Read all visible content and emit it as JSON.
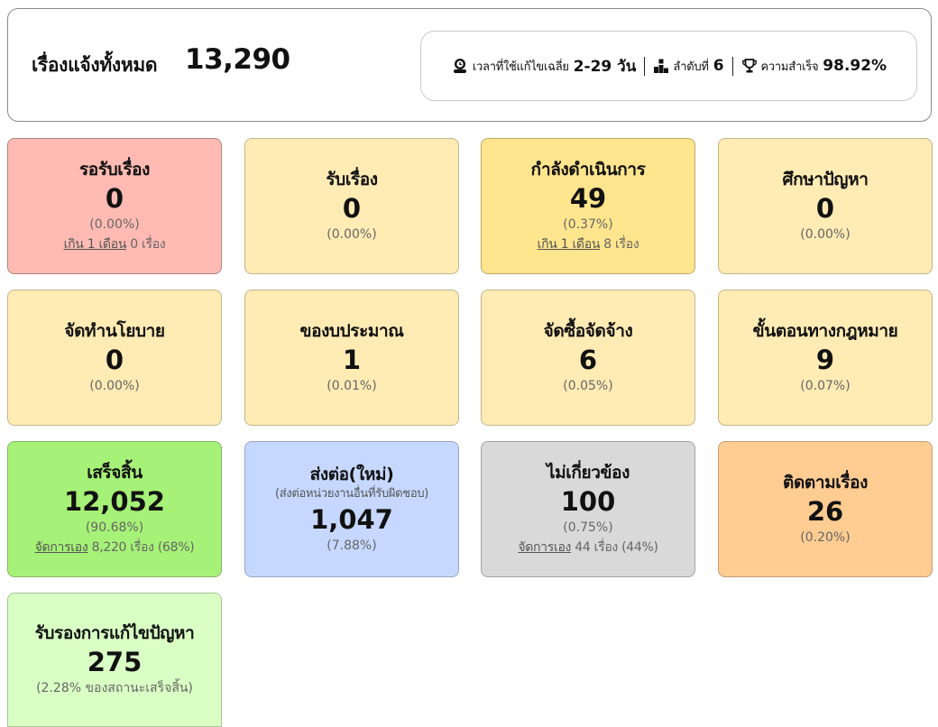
{
  "summary": {
    "label": "เรื่องแจ้งทั้งหมด",
    "total": "13,290",
    "stats": [
      {
        "icon": "stopwatch-user-icon",
        "label": "เวลาที่ใช้แก้ไขเฉลี่ย",
        "value": "2-29 วัน"
      },
      {
        "icon": "ranking-podium-icon",
        "label": "ลำดับที่",
        "value": "6"
      },
      {
        "icon": "trophy-icon",
        "label": "ความสำเร็จ",
        "value": "98.92%"
      }
    ]
  },
  "cards": [
    {
      "title": "รอรับเรื่อง",
      "count": "0",
      "percent": "(0.00%)",
      "note_link": "เกิน 1 เดือน",
      "note_text": " 0 เรื่อง",
      "color": "#ffbbb3"
    },
    {
      "title": "รับเรื่อง",
      "count": "0",
      "percent": "(0.00%)",
      "color": "#ffebb4"
    },
    {
      "title": "กำลังดำเนินการ",
      "count": "49",
      "percent": "(0.37%)",
      "note_link": "เกิน 1 เดือน",
      "note_text": " 8 เรื่อง",
      "color": "#ffe58d"
    },
    {
      "title": "ศึกษาปัญหา",
      "count": "0",
      "percent": "(0.00%)",
      "color": "#ffebb4"
    },
    {
      "title": "จัดทำนโยบาย",
      "count": "0",
      "percent": "(0.00%)",
      "color": "#ffebb4"
    },
    {
      "title": "ของบประมาณ",
      "count": "1",
      "percent": "(0.01%)",
      "color": "#ffebb4"
    },
    {
      "title": "จัดซื้อจัดจ้าง",
      "count": "6",
      "percent": "(0.05%)",
      "color": "#ffebb4"
    },
    {
      "title": "ขั้นตอนทางกฎหมาย",
      "count": "9",
      "percent": "(0.07%)",
      "color": "#ffebb4"
    },
    {
      "title": "เสร็จสิ้น",
      "count": "12,052",
      "percent": "(90.68%)",
      "note_link": "จัดการเอง",
      "note_text": " 8,220 เรื่อง (68%)",
      "color": "#a6f177"
    },
    {
      "title": "ส่งต่อ(ใหม่)",
      "subtitle": "(ส่งต่อหน่วยงานอื่นที่รับผิดชอบ)",
      "count": "1,047",
      "percent": "(7.88%)",
      "color": "#c6d8ff"
    },
    {
      "title": "ไม่เกี่ยวข้อง",
      "count": "100",
      "percent": "(0.75%)",
      "note_link": "จัดการเอง",
      "note_text": " 44 เรื่อง (44%)",
      "color": "#d9d9d9"
    },
    {
      "title": "ติดตามเรื่อง",
      "count": "26",
      "percent": "(0.20%)",
      "color": "#ffcc92"
    },
    {
      "title": "รับรองการแก้ไขปัญหา",
      "count": "275",
      "percent": "(2.28% ของสถานะเสร็จสิ้น)",
      "color": "#d9ffc4"
    }
  ]
}
